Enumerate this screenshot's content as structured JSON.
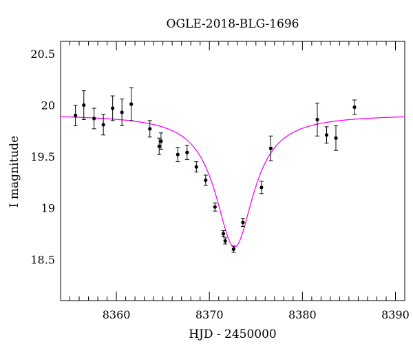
{
  "chart_data": {
    "type": "scatter",
    "title": "OGLE-2018-BLG-1696",
    "xlabel": "HJD - 2450000",
    "ylabel": "I magnitude",
    "xlim": [
      8354,
      8391
    ],
    "ylim": [
      20.62,
      18.1
    ],
    "y_inverted": true,
    "xticks": [
      8360,
      8370,
      8380,
      8390
    ],
    "yticks": [
      18.5,
      19,
      19.5,
      20,
      20.5
    ],
    "ytick_labels": [
      "18.5",
      "19",
      "19.5",
      "20",
      "20.5"
    ],
    "colors": {
      "model": "#ff00ff",
      "points": "#000000",
      "axes": "#000000"
    },
    "points": [
      {
        "x": 8355.6,
        "y": 19.9,
        "err": 0.1
      },
      {
        "x": 8356.5,
        "y": 20.0,
        "err": 0.14
      },
      {
        "x": 8357.6,
        "y": 19.87,
        "err": 0.1
      },
      {
        "x": 8358.6,
        "y": 19.81,
        "err": 0.1
      },
      {
        "x": 8359.6,
        "y": 19.97,
        "err": 0.12
      },
      {
        "x": 8360.6,
        "y": 19.93,
        "err": 0.13
      },
      {
        "x": 8361.6,
        "y": 20.01,
        "err": 0.16
      },
      {
        "x": 8363.6,
        "y": 19.77,
        "err": 0.08
      },
      {
        "x": 8364.6,
        "y": 19.6,
        "err": 0.08
      },
      {
        "x": 8364.8,
        "y": 19.65,
        "err": 0.08
      },
      {
        "x": 8366.6,
        "y": 19.52,
        "err": 0.07
      },
      {
        "x": 8367.6,
        "y": 19.54,
        "err": 0.07
      },
      {
        "x": 8368.6,
        "y": 19.4,
        "err": 0.05
      },
      {
        "x": 8369.6,
        "y": 19.27,
        "err": 0.05
      },
      {
        "x": 8370.6,
        "y": 19.01,
        "err": 0.04
      },
      {
        "x": 8371.5,
        "y": 18.75,
        "err": 0.03
      },
      {
        "x": 8371.7,
        "y": 18.68,
        "err": 0.03
      },
      {
        "x": 8372.6,
        "y": 18.6,
        "err": 0.03
      },
      {
        "x": 8373.6,
        "y": 18.86,
        "err": 0.04
      },
      {
        "x": 8375.6,
        "y": 19.2,
        "err": 0.06
      },
      {
        "x": 8376.6,
        "y": 19.58,
        "err": 0.12
      },
      {
        "x": 8381.6,
        "y": 19.86,
        "err": 0.16
      },
      {
        "x": 8382.6,
        "y": 19.71,
        "err": 0.08
      },
      {
        "x": 8383.6,
        "y": 19.68,
        "err": 0.12
      },
      {
        "x": 8385.6,
        "y": 19.98,
        "err": 0.07
      }
    ],
    "model": {
      "baseline": 19.91,
      "peak_mag": 18.62,
      "t0": 8372.7,
      "halfwidth": 2.5
    }
  }
}
